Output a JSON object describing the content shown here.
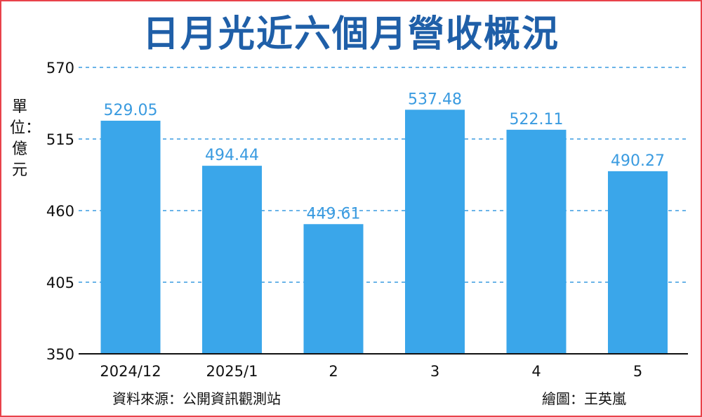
{
  "title": "日月光近六個月營收概況",
  "unit_label": "單位：億元",
  "source": "資料來源：公開資訊觀測站",
  "credit": "繪圖：王英嵐",
  "colors": {
    "bar": "#3aa6ea",
    "label": "#3a9be0",
    "grid": "#3a9be0",
    "title": "#1f5fa8",
    "border": "#e8424a"
  },
  "chart_data": {
    "type": "bar",
    "title": "日月光近六個月營收概況",
    "ylabel": "單位：億元",
    "xlabel": "",
    "categories": [
      "2024/12",
      "2025/1",
      "2",
      "3",
      "4",
      "5"
    ],
    "values": [
      529.05,
      494.44,
      449.61,
      537.48,
      522.11,
      490.27
    ],
    "value_labels": [
      "529.05",
      "494.44",
      "449.61",
      "537.48",
      "522.11",
      "490.27"
    ],
    "ylim": [
      350,
      570
    ],
    "yticks": [
      350,
      405,
      460,
      515,
      570
    ],
    "grid": true,
    "legend": "none"
  }
}
